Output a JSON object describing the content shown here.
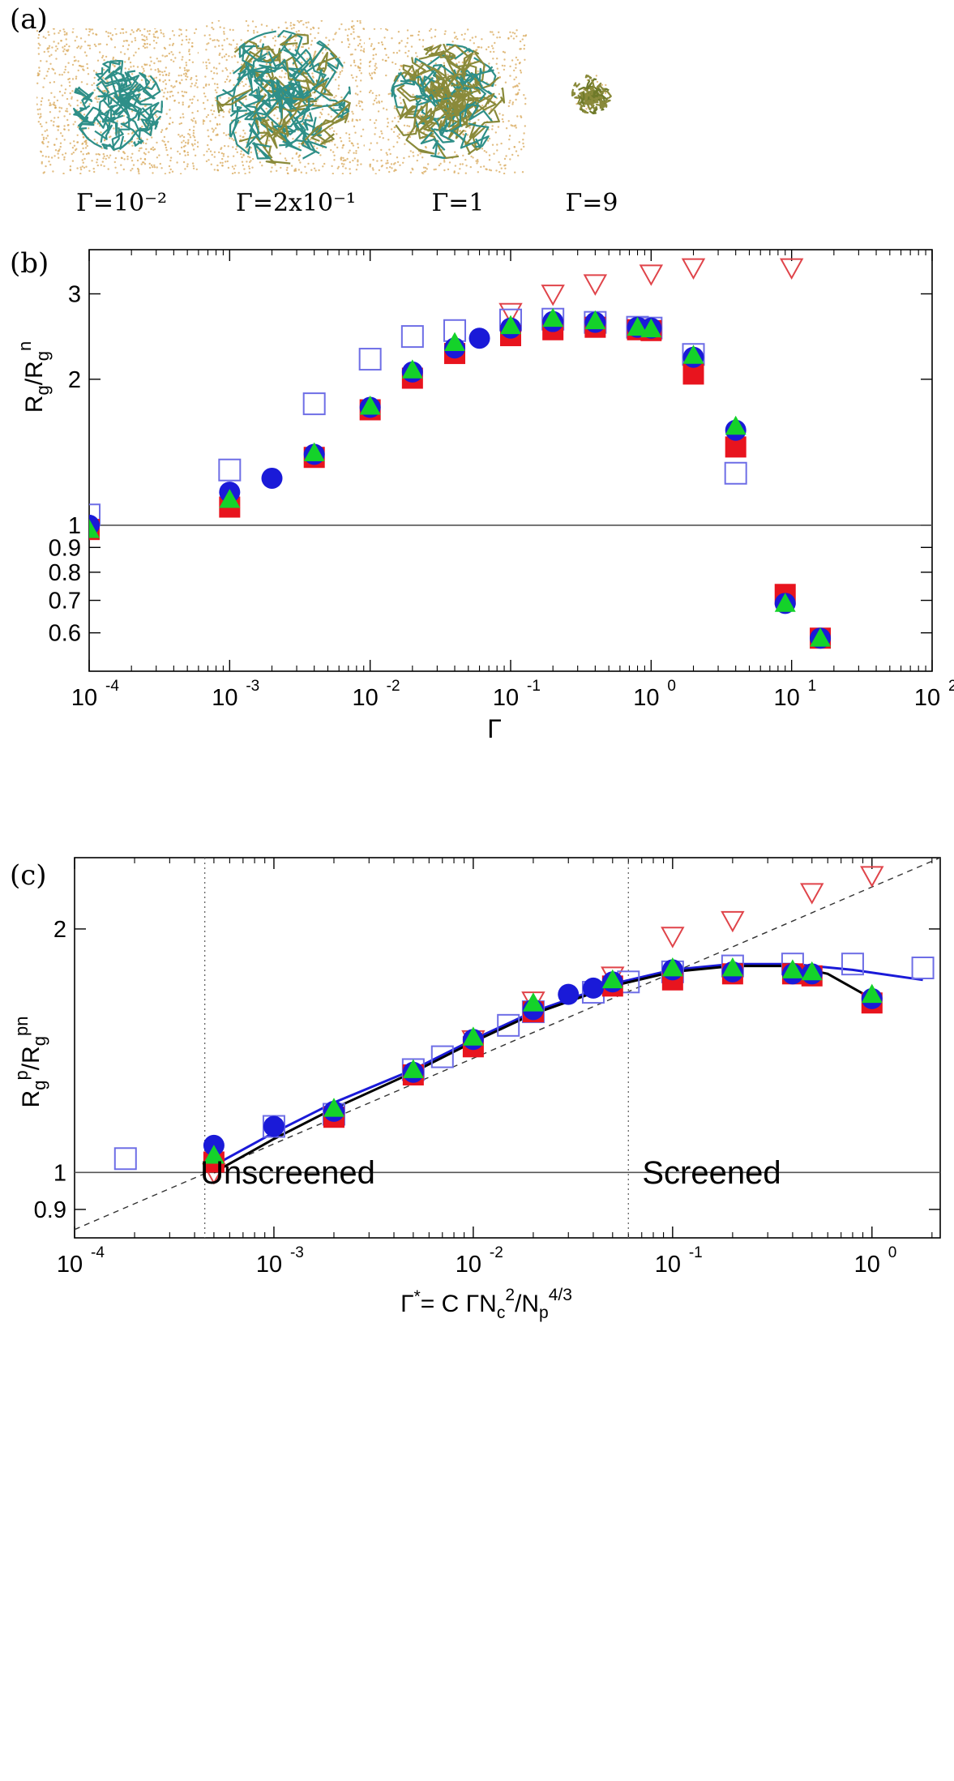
{
  "panels": {
    "a": {
      "tag": "(a)",
      "snapshot_labels": [
        "Γ=10⁻²",
        "Γ=2x10⁻¹",
        "Γ=1",
        "Γ=9"
      ]
    },
    "b": {
      "tag": "(b)"
    },
    "c": {
      "tag": "(c)"
    }
  },
  "colors": {
    "red": "#e8141e",
    "blue": "#1a1ad8",
    "green": "#14d22a",
    "open_blue": "#6e6ee6",
    "open_red": "#e0444a",
    "polymer_teal": "#2e8f88",
    "polymer_olive": "#8a8a3a",
    "ion_orange": "#d8a85a"
  },
  "chart_data": [
    {
      "type": "scatter",
      "panel": "b",
      "xlabel": "Γ",
      "ylabel": "R_g/R_g^n",
      "x_scale": "log",
      "y_scale": "log",
      "xlim": [
        0.0001,
        100
      ],
      "ylim": [
        0.5,
        3.7
      ],
      "x_ticks": [
        0.0001,
        0.001,
        0.01,
        0.1,
        1,
        10,
        100
      ],
      "x_tick_labels": [
        [
          "10",
          "-4"
        ],
        [
          "10",
          "-3"
        ],
        [
          "10",
          "-2"
        ],
        [
          "10",
          "-1"
        ],
        [
          "10",
          "0"
        ],
        [
          "10",
          "1"
        ],
        [
          "10",
          "2"
        ]
      ],
      "y_ticks": [
        0.6,
        0.7,
        0.8,
        0.9,
        1,
        2,
        3
      ],
      "y_tick_labels": [
        "0.6",
        "0.7",
        "0.8",
        "0.9",
        "1",
        "2",
        "3"
      ],
      "reference_line_y": 1,
      "series": [
        {
          "marker": "open-triangle-down",
          "color": "#e0444a",
          "x": [
            0.1,
            0.2,
            0.4,
            1,
            2,
            10
          ],
          "y": [
            2.75,
            3.0,
            3.15,
            3.3,
            3.4,
            3.4
          ]
        },
        {
          "marker": "open-square",
          "color": "#6e6ee6",
          "x": [
            0.0001,
            0.001,
            0.004,
            0.01,
            0.02,
            0.04,
            0.1,
            0.2,
            0.4,
            0.8,
            1,
            2,
            4
          ],
          "y": [
            1.05,
            1.3,
            1.78,
            2.2,
            2.45,
            2.52,
            2.65,
            2.66,
            2.62,
            2.56,
            2.55,
            2.25,
            1.28
          ]
        },
        {
          "marker": "filled-square",
          "color": "#e8141e",
          "x": [
            0.0001,
            0.001,
            0.004,
            0.01,
            0.02,
            0.04,
            0.1,
            0.2,
            0.4,
            0.8,
            1,
            2,
            4,
            9,
            16
          ],
          "y": [
            0.98,
            1.09,
            1.38,
            1.73,
            2.01,
            2.26,
            2.46,
            2.53,
            2.56,
            2.53,
            2.52,
            2.05,
            1.45,
            0.72,
            0.585
          ]
        },
        {
          "marker": "filled-circle",
          "color": "#1a1ad8",
          "x": [
            0.0001,
            0.001,
            0.002,
            0.004,
            0.01,
            0.02,
            0.04,
            0.06,
            0.1,
            0.2,
            0.4,
            0.8,
            1,
            2,
            4,
            9,
            16
          ],
          "y": [
            1.0,
            1.17,
            1.25,
            1.4,
            1.75,
            2.07,
            2.32,
            2.43,
            2.55,
            2.63,
            2.62,
            2.56,
            2.55,
            2.22,
            1.57,
            0.69,
            0.585
          ]
        },
        {
          "marker": "filled-triangle-up",
          "color": "#14d22a",
          "x": [
            0.0001,
            0.001,
            0.004,
            0.01,
            0.02,
            0.04,
            0.1,
            0.2,
            0.4,
            0.8,
            1,
            2,
            4,
            9,
            16
          ],
          "y": [
            0.98,
            1.13,
            1.41,
            1.76,
            2.09,
            2.38,
            2.58,
            2.67,
            2.64,
            2.56,
            2.54,
            2.24,
            1.6,
            0.69,
            0.585
          ]
        }
      ]
    },
    {
      "type": "scatter",
      "panel": "c",
      "xlabel": "Γ* = C ΓN_c²/N_p^{4/3}",
      "ylabel": "R_g^p/R_g^pn",
      "x_scale": "log",
      "y_scale": "log",
      "xlim": [
        0.0001,
        2.2
      ],
      "ylim": [
        0.83,
        2.45
      ],
      "x_ticks": [
        0.0001,
        0.001,
        0.01,
        0.1,
        1
      ],
      "x_tick_labels": [
        [
          "10",
          "-4"
        ],
        [
          "10",
          "-3"
        ],
        [
          "10",
          "-2"
        ],
        [
          "10",
          "-1"
        ],
        [
          "10",
          "0"
        ]
      ],
      "y_ticks": [
        0.9,
        1,
        2
      ],
      "y_tick_labels": [
        "0.9",
        "1",
        "2"
      ],
      "reference_line_y": 1,
      "vertical_dotted_lines_x": [
        0.00045,
        0.06
      ],
      "region_labels": [
        "Unscreened",
        "Screened"
      ],
      "dashed_line": {
        "x": [
          0.0001,
          2.2
        ],
        "y": [
          0.85,
          2.45
        ]
      },
      "curves": [
        {
          "name": "",
          "color": "#1a1ad8",
          "x": [
            0.0005,
            0.001,
            0.002,
            0.005,
            0.01,
            0.02,
            0.05,
            0.1,
            0.2,
            0.4,
            0.8,
            1.8
          ],
          "y": [
            1.02,
            1.12,
            1.22,
            1.34,
            1.46,
            1.58,
            1.71,
            1.78,
            1.81,
            1.81,
            1.78,
            1.73
          ]
        },
        {
          "name": "",
          "color": "#000000",
          "x": [
            0.0005,
            0.001,
            0.002,
            0.005,
            0.01,
            0.02,
            0.05,
            0.1,
            0.2,
            0.4,
            0.6,
            1.0
          ],
          "y": [
            1.0,
            1.1,
            1.2,
            1.33,
            1.45,
            1.57,
            1.7,
            1.77,
            1.8,
            1.8,
            1.76,
            1.64
          ]
        }
      ],
      "series": [
        {
          "marker": "open-triangle-down",
          "color": "#e0444a",
          "x": [
            0.0005,
            0.01,
            0.02,
            0.05,
            0.1,
            0.2,
            0.5,
            1.0
          ],
          "y": [
            1.0,
            1.46,
            1.63,
            1.75,
            1.96,
            2.05,
            2.22,
            2.33
          ]
        },
        {
          "marker": "open-square",
          "color": "#6e6ee6",
          "x": [
            0.00018,
            0.001,
            0.002,
            0.005,
            0.007,
            0.015,
            0.02,
            0.04,
            0.06,
            0.1,
            0.2,
            0.4,
            0.8,
            1.8
          ],
          "y": [
            1.04,
            1.14,
            1.18,
            1.34,
            1.39,
            1.52,
            1.58,
            1.67,
            1.72,
            1.77,
            1.8,
            1.81,
            1.81,
            1.79
          ]
        },
        {
          "marker": "filled-square",
          "color": "#e8141e",
          "x": [
            0.0005,
            0.002,
            0.005,
            0.01,
            0.02,
            0.05,
            0.1,
            0.2,
            0.4,
            0.5,
            1.0
          ],
          "y": [
            1.03,
            1.17,
            1.32,
            1.43,
            1.58,
            1.7,
            1.73,
            1.76,
            1.76,
            1.75,
            1.62
          ]
        },
        {
          "marker": "filled-circle",
          "color": "#1a1ad8",
          "x": [
            0.0005,
            0.001,
            0.002,
            0.005,
            0.01,
            0.02,
            0.03,
            0.04,
            0.05,
            0.1,
            0.2,
            0.4,
            0.5,
            1.0
          ],
          "y": [
            1.08,
            1.14,
            1.19,
            1.33,
            1.46,
            1.59,
            1.66,
            1.69,
            1.72,
            1.78,
            1.77,
            1.76,
            1.76,
            1.64
          ]
        },
        {
          "marker": "filled-triangle-up",
          "color": "#14d22a",
          "x": [
            0.0005,
            0.002,
            0.005,
            0.01,
            0.02,
            0.05,
            0.1,
            0.2,
            0.4,
            0.5,
            1.0
          ],
          "y": [
            1.05,
            1.2,
            1.34,
            1.47,
            1.62,
            1.73,
            1.79,
            1.79,
            1.78,
            1.77,
            1.66
          ]
        }
      ]
    }
  ]
}
